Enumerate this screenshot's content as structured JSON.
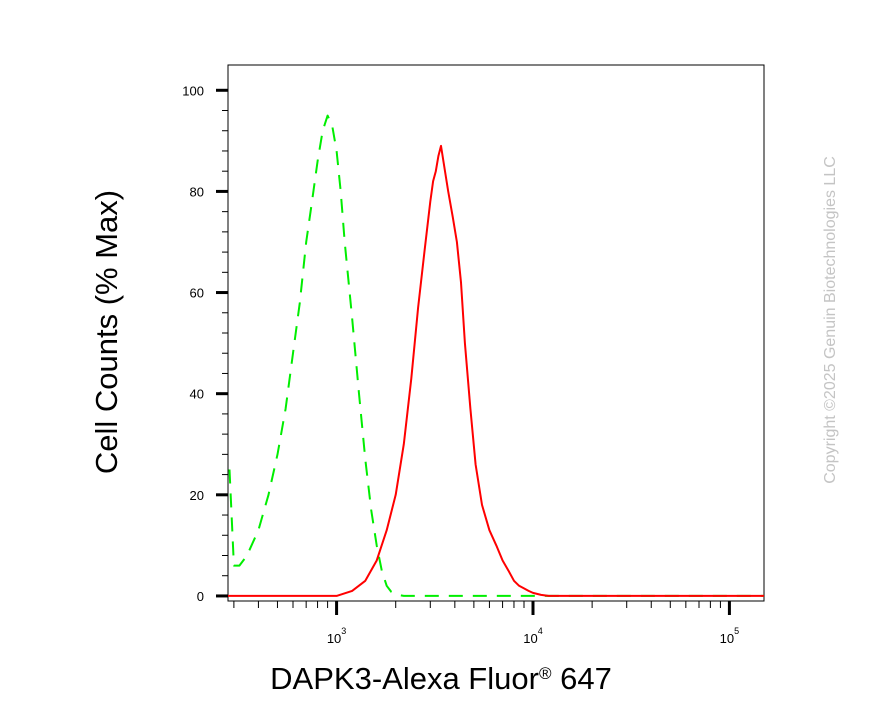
{
  "chart_data": {
    "type": "line",
    "title": "",
    "xlabel_main": "DAPK3-Alexa Fluor",
    "xlabel_reg": "®",
    "xlabel_tail": " 647",
    "ylabel": "Cell Counts (% Max)",
    "x_scale": "log",
    "xlim": [
      280,
      150000
    ],
    "ylim": [
      -1,
      105
    ],
    "y_ticks": [
      0,
      20,
      40,
      60,
      80,
      100
    ],
    "y_tick_labels": [
      "0",
      "20",
      "40",
      "60",
      "80",
      "100"
    ],
    "x_ticks": [
      1000,
      10000,
      100000
    ],
    "x_tick_base": "10",
    "x_tick_exps": [
      "3",
      "4",
      "5"
    ],
    "grid": false,
    "series": [
      {
        "color": "#00ee00",
        "style": "dashed",
        "x": [
          285,
          300,
          320,
          350,
          400,
          450,
          500,
          550,
          600,
          650,
          700,
          750,
          800,
          850,
          900,
          950,
          1000,
          1050,
          1100,
          1200,
          1300,
          1400,
          1500,
          1600,
          1700,
          1800,
          1900,
          2000,
          2200,
          2500,
          3000,
          5000,
          10000,
          150000
        ],
        "y": [
          25,
          6,
          6,
          8,
          13,
          20,
          28,
          37,
          48,
          58,
          70,
          78,
          86,
          92,
          95,
          93,
          88,
          80,
          70,
          55,
          40,
          27,
          17,
          10,
          5,
          2,
          0.8,
          0.3,
          0,
          0,
          0,
          0,
          0,
          0
        ]
      },
      {
        "color": "#ff0000",
        "style": "solid",
        "x": [
          280,
          1000,
          1200,
          1400,
          1600,
          1800,
          2000,
          2200,
          2400,
          2600,
          2800,
          3000,
          3100,
          3200,
          3300,
          3400,
          3500,
          3700,
          3900,
          4100,
          4300,
          4500,
          4800,
          5100,
          5500,
          6000,
          6500,
          7000,
          7500,
          8000,
          8500,
          9000,
          9500,
          10000,
          11000,
          12000,
          150000
        ],
        "y": [
          0,
          0,
          1,
          3,
          7,
          13,
          20,
          30,
          43,
          57,
          68,
          78,
          82,
          84,
          87,
          89,
          86,
          80,
          75,
          70,
          62,
          50,
          37,
          26,
          18,
          13,
          10,
          7,
          5,
          3,
          2,
          1.5,
          1,
          0.6,
          0.2,
          0,
          0
        ]
      }
    ]
  },
  "watermark": "Copyright ©2025 Genuin Biotechnologies LLC"
}
